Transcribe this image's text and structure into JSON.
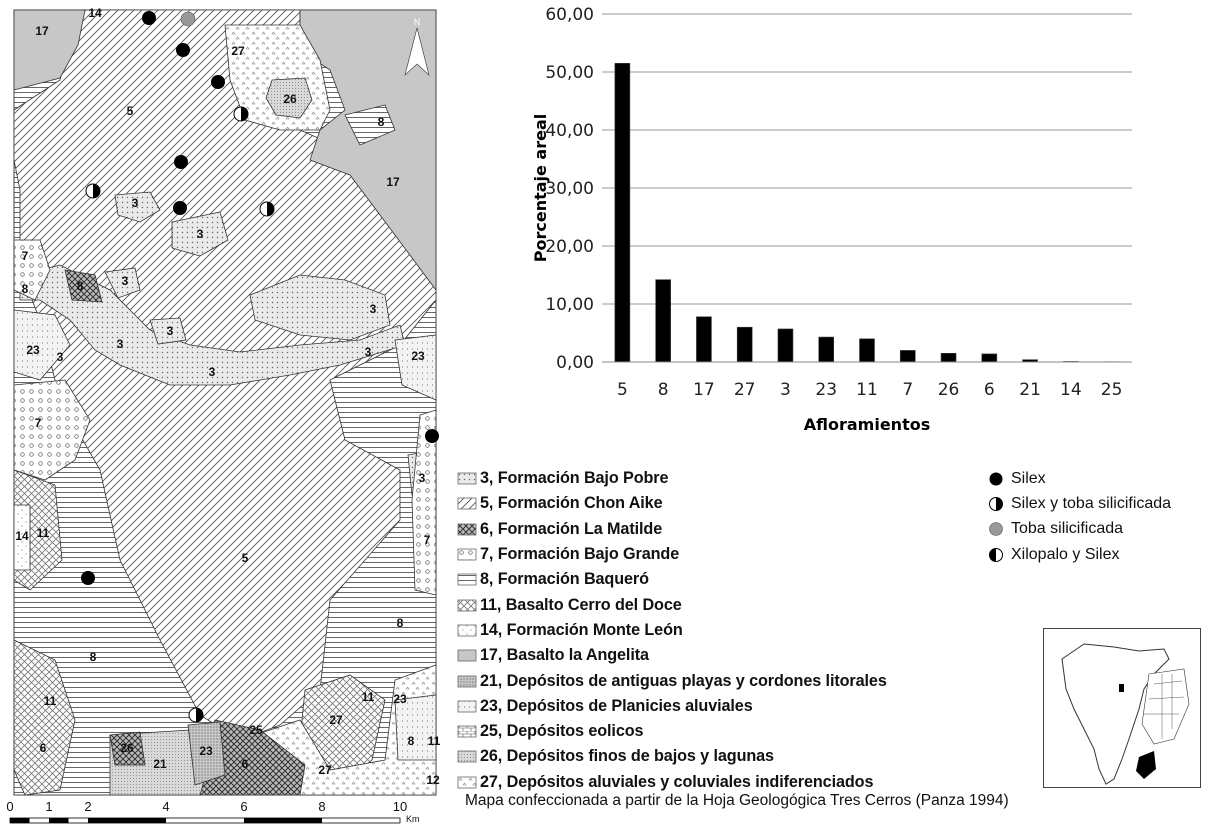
{
  "map": {
    "scale_ticks": [
      "0",
      "1",
      "2",
      "4",
      "6",
      "8",
      "10"
    ],
    "scale_unit": "Km",
    "north": "N",
    "unit_labels": [
      "14",
      "17",
      "27",
      "26",
      "5",
      "8",
      "17",
      "3",
      "3",
      "7",
      "8",
      "8",
      "3",
      "3",
      "3",
      "3",
      "3",
      "3",
      "23",
      "3",
      "23",
      "7",
      "3",
      "7",
      "14",
      "11",
      "5",
      "8",
      "8",
      "11",
      "11",
      "27",
      "23",
      "25",
      "11",
      "8",
      "6",
      "26",
      "21",
      "23",
      "6",
      "27",
      "12"
    ],
    "symbol_counts": {
      "silex": 8,
      "silex_toba": 4,
      "toba": 1
    }
  },
  "legend": {
    "items": [
      {
        "label": "3, Formación Bajo Pobre",
        "pattern": "dots"
      },
      {
        "label": "5, Formación Chon Aike",
        "pattern": "diag"
      },
      {
        "label": "6, Formación La Matilde",
        "pattern": "cross"
      },
      {
        "label": "7, Formación Bajo Grande",
        "pattern": "circles"
      },
      {
        "label": "8, Formación Baqueró",
        "pattern": "hlines"
      },
      {
        "label": "11, Basalto Cerro del Doce",
        "pattern": "crosslight"
      },
      {
        "label": "14, Formación Monte León",
        "pattern": "sparse"
      },
      {
        "label": "17, Basalto la Angelita",
        "pattern": "gray"
      },
      {
        "label": "21, Depósitos de antiguas playas y cordones litorales",
        "pattern": "dense"
      },
      {
        "label": "23, Depósitos de Planicies aluviales",
        "pattern": "vdots"
      },
      {
        "label": "25, Depósitos eolicos",
        "pattern": "bricks"
      },
      {
        "label": "26, Depósitos finos de bajos y lagunas",
        "pattern": "fine"
      },
      {
        "label": "27, Depósitos aluviales y coluviales indiferenciados",
        "pattern": "tri"
      }
    ]
  },
  "symbols": {
    "items": [
      {
        "label": "Silex",
        "icon": "filled-circle-icon"
      },
      {
        "label": "Silex y toba silicificada",
        "icon": "half-circle-icon"
      },
      {
        "label": "Toba silicificada",
        "icon": "gray-circle-icon"
      },
      {
        "label": "Xilopalo y Silex",
        "icon": "half-circle-reverse-icon"
      }
    ]
  },
  "caption": "Mapa confeccionada a partir de la Hoja Geologógica Tres Cerros (Panza 1994)",
  "chart_data": {
    "type": "bar",
    "categories": [
      "5",
      "8",
      "17",
      "27",
      "3",
      "23",
      "11",
      "7",
      "26",
      "6",
      "21",
      "14",
      "25"
    ],
    "values": [
      51.5,
      14.2,
      7.8,
      6.0,
      5.7,
      4.3,
      4.0,
      2.0,
      1.5,
      1.4,
      0.4,
      0.1,
      0.05
    ],
    "xlabel": "Afloramientos",
    "ylabel": "Porcentaje areal",
    "ylim": [
      0,
      60
    ],
    "yticks": [
      "0,00",
      "10,00",
      "20,00",
      "30,00",
      "40,00",
      "50,00",
      "60,00"
    ],
    "grid": true,
    "bar_color": "#000000",
    "plot_bg": "#ffffff"
  }
}
